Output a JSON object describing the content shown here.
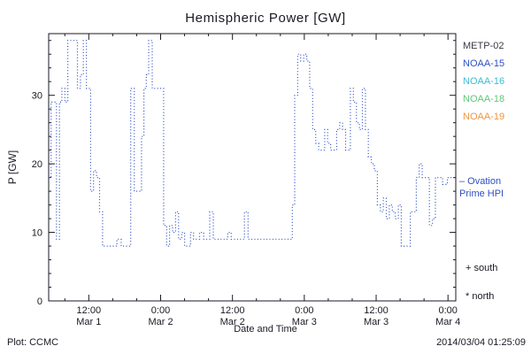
{
  "header": {
    "title": "Hemispheric Power [GW]"
  },
  "footer": {
    "credit": "Plot: CCMC",
    "timestamp": "2014/03/04 01:25:09"
  },
  "legend": {
    "satellites": [
      {
        "label": "METP-02",
        "color": "#3a3a48"
      },
      {
        "label": "NOAA-15",
        "color": "#2d4ec4"
      },
      {
        "label": "NOAA-16",
        "color": "#3bbcd4"
      },
      {
        "label": "NOAA-18",
        "color": "#5ec878"
      },
      {
        "label": "NOAA-19",
        "color": "#ef9440"
      }
    ],
    "line_label_line1": "– Ovation",
    "line_label_line2": "Prime HPI",
    "line_label_color": "#2d4ec4",
    "south_marker": "+ south",
    "north_marker": "* north"
  },
  "chart_data": {
    "type": "line",
    "style": "dotted-step",
    "title": "Hemispheric Power [GW]",
    "xlabel": "Date and Time",
    "ylabel": "P [GW]",
    "series_name": "Ovation Prime HPI",
    "line_color": "#2d4ec4",
    "axis_color": "#1a1a24",
    "grid": false,
    "legend_position": "right",
    "x_unit": "hours since Mar 1 00:00",
    "xlim_hours": [
      5.3,
      73.3
    ],
    "ylim": [
      0,
      39
    ],
    "yticks": [
      0,
      10,
      20,
      30
    ],
    "xticks": [
      {
        "hour": 12,
        "time": "12:00",
        "date": "Mar 1"
      },
      {
        "hour": 24,
        "time": "0:00",
        "date": "Mar 2"
      },
      {
        "hour": 36,
        "time": "12:00",
        "date": "Mar 2"
      },
      {
        "hour": 48,
        "time": "0:00",
        "date": "Mar 3"
      },
      {
        "hour": 60,
        "time": "12:00",
        "date": "Mar 3"
      },
      {
        "hour": 72,
        "time": "0:00",
        "date": "Mar 4"
      }
    ],
    "points": [
      [
        5.3,
        18
      ],
      [
        5.7,
        29
      ],
      [
        6.2,
        29
      ],
      [
        6.6,
        9
      ],
      [
        7.1,
        29
      ],
      [
        7.5,
        31
      ],
      [
        8.0,
        29
      ],
      [
        8.5,
        38
      ],
      [
        9.6,
        38
      ],
      [
        10.1,
        31
      ],
      [
        10.6,
        33
      ],
      [
        11.1,
        38
      ],
      [
        11.6,
        31
      ],
      [
        12.3,
        16
      ],
      [
        12.8,
        19
      ],
      [
        13.3,
        18
      ],
      [
        13.8,
        13
      ],
      [
        14.3,
        8
      ],
      [
        16.2,
        8
      ],
      [
        16.7,
        9
      ],
      [
        17.4,
        8
      ],
      [
        18.6,
        8
      ],
      [
        19.0,
        31
      ],
      [
        19.6,
        16
      ],
      [
        20.4,
        16
      ],
      [
        20.8,
        24
      ],
      [
        21.2,
        31
      ],
      [
        21.6,
        33
      ],
      [
        22.0,
        38
      ],
      [
        22.6,
        31
      ],
      [
        24.3,
        31
      ],
      [
        24.5,
        11
      ],
      [
        25.0,
        8
      ],
      [
        25.5,
        11
      ],
      [
        26.0,
        10
      ],
      [
        26.5,
        13
      ],
      [
        27.0,
        9
      ],
      [
        27.5,
        10
      ],
      [
        28.0,
        8
      ],
      [
        29.0,
        10
      ],
      [
        29.5,
        9
      ],
      [
        30.5,
        10
      ],
      [
        31.2,
        9
      ],
      [
        32.2,
        13
      ],
      [
        32.8,
        9
      ],
      [
        34.2,
        9
      ],
      [
        35.2,
        10
      ],
      [
        35.8,
        9
      ],
      [
        37.2,
        9
      ],
      [
        38.0,
        13
      ],
      [
        38.6,
        9
      ],
      [
        40.0,
        9
      ],
      [
        45.6,
        9
      ],
      [
        46.0,
        14
      ],
      [
        46.4,
        30
      ],
      [
        46.9,
        36
      ],
      [
        47.4,
        35
      ],
      [
        47.9,
        36
      ],
      [
        48.4,
        35
      ],
      [
        48.9,
        31
      ],
      [
        49.4,
        25
      ],
      [
        49.9,
        23
      ],
      [
        50.4,
        22
      ],
      [
        51.4,
        25
      ],
      [
        51.9,
        23
      ],
      [
        52.4,
        22
      ],
      [
        53.4,
        25
      ],
      [
        53.9,
        26
      ],
      [
        54.4,
        25
      ],
      [
        54.9,
        22
      ],
      [
        55.7,
        31
      ],
      [
        56.2,
        29
      ],
      [
        56.7,
        26
      ],
      [
        57.2,
        25
      ],
      [
        57.7,
        31
      ],
      [
        58.2,
        25
      ],
      [
        58.7,
        21
      ],
      [
        59.2,
        20
      ],
      [
        59.7,
        19
      ],
      [
        60.2,
        14
      ],
      [
        60.7,
        13
      ],
      [
        61.2,
        15
      ],
      [
        61.7,
        12
      ],
      [
        62.2,
        14
      ],
      [
        62.7,
        13
      ],
      [
        63.2,
        12
      ],
      [
        63.7,
        14
      ],
      [
        64.2,
        8
      ],
      [
        65.2,
        8
      ],
      [
        65.7,
        13
      ],
      [
        66.2,
        13
      ],
      [
        66.7,
        18
      ],
      [
        67.2,
        20
      ],
      [
        67.7,
        18
      ],
      [
        68.4,
        18
      ],
      [
        68.9,
        11
      ],
      [
        69.4,
        12
      ],
      [
        69.9,
        18
      ],
      [
        71.1,
        17
      ],
      [
        71.9,
        18
      ],
      [
        73.3,
        18
      ]
    ]
  }
}
